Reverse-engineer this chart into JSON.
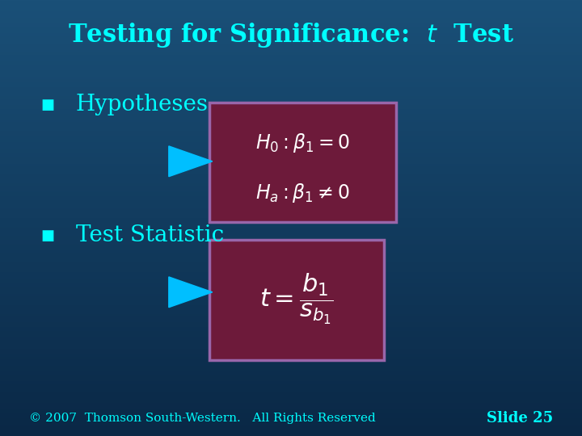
{
  "title": "Testing for Significance:  $t$  Test",
  "title_color": "#00FFFF",
  "title_fontsize": 22,
  "bg_color": "#1a5276",
  "bullet_color": "#00FFFF",
  "bullet1_text": "Hypotheses",
  "bullet2_text": "Test Statistic",
  "bullet_fontsize": 20,
  "box_bg_color": "#6d1a3a",
  "box_border_color": "#9966aa",
  "arrow_color": "#00BFFF",
  "formula1_line1": "$H_0: \\beta_1 = 0$",
  "formula1_line2": "$H_a: \\beta_1 \\neq 0$",
  "formula2": "$t = \\dfrac{b_1}{s_{b_1}}$",
  "formula_color": "#ffffff",
  "formula_fontsize": 16,
  "footer_text": "© 2007  Thomson South-Western.   All Rights Reserved",
  "footer_color": "#00FFFF",
  "footer_fontsize": 11,
  "slide_text": "Slide 25",
  "slide_color": "#00FFFF",
  "slide_fontsize": 13
}
